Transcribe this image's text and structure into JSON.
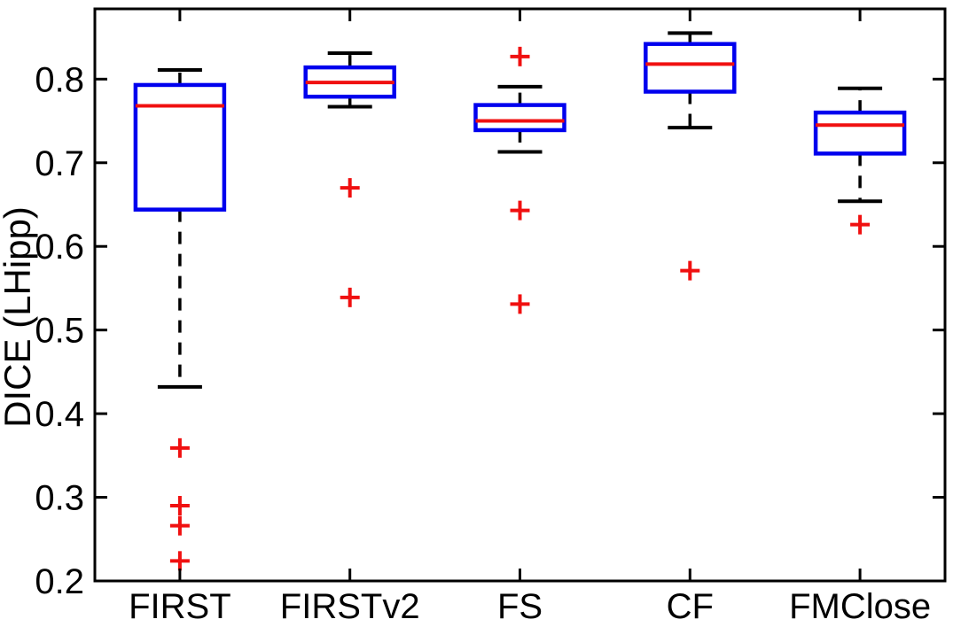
{
  "chart_data": {
    "type": "boxplot",
    "title": "",
    "xlabel": "",
    "ylabel": "DICE (LHipp)",
    "categories": [
      "FIRST",
      "FIRSTv2",
      "FS",
      "CF",
      "FMClose"
    ],
    "ylim": [
      0.2,
      0.884
    ],
    "yticks": [
      0.2,
      0.3,
      0.4,
      0.5,
      0.6,
      0.7,
      0.8
    ],
    "ytick_labels": [
      "0.2",
      "0.3",
      "0.4",
      "0.5",
      "0.6",
      "0.7",
      "0.8"
    ],
    "grid": false,
    "legend_position": "none",
    "boxes": [
      {
        "category": "FIRST",
        "whisker_low": 0.432,
        "q1": 0.644,
        "median": 0.768,
        "q3": 0.793,
        "whisker_high": 0.811,
        "outliers": [
          0.359,
          0.29,
          0.266,
          0.224
        ]
      },
      {
        "category": "FIRSTv2",
        "whisker_low": 0.767,
        "q1": 0.779,
        "median": 0.796,
        "q3": 0.814,
        "whisker_high": 0.831,
        "outliers": [
          0.67,
          0.539
        ]
      },
      {
        "category": "FS",
        "whisker_low": 0.713,
        "q1": 0.739,
        "median": 0.75,
        "q3": 0.769,
        "whisker_high": 0.791,
        "outliers": [
          0.827,
          0.643,
          0.531
        ]
      },
      {
        "category": "CF",
        "whisker_low": 0.742,
        "q1": 0.785,
        "median": 0.818,
        "q3": 0.842,
        "whisker_high": 0.855,
        "outliers": [
          0.571
        ]
      },
      {
        "category": "FMClose",
        "whisker_low": 0.654,
        "q1": 0.711,
        "median": 0.745,
        "q3": 0.76,
        "whisker_high": 0.789,
        "outliers": [
          0.626
        ]
      }
    ],
    "colors": {
      "box": "#0000ee",
      "median": "#f01010",
      "whisker": "#000000",
      "cap": "#000000",
      "outlier": "#f01010",
      "axis": "#000000",
      "background": "#ffffff"
    }
  }
}
